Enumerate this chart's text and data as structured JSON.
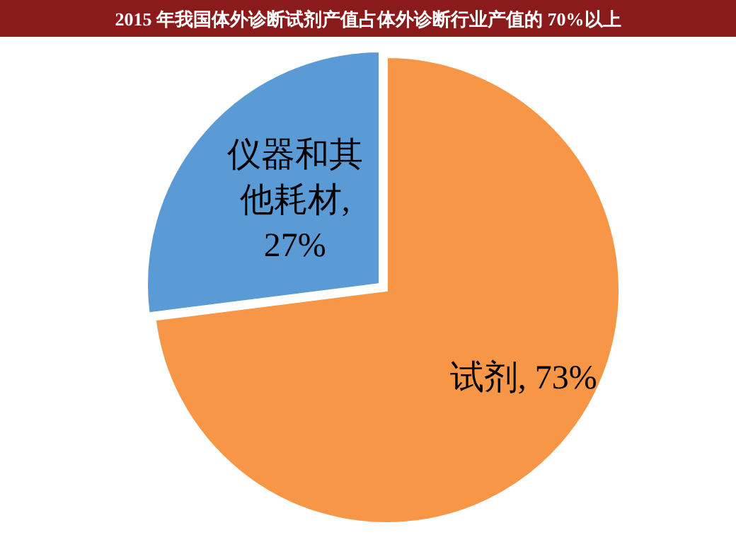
{
  "chart_data": {
    "type": "pie",
    "title": "2015 年我国体外诊断试剂产值占体外诊断行业产值的 70%以上",
    "categories": [
      "试剂",
      "仪器和其他耗材"
    ],
    "values": [
      73,
      27
    ],
    "colors": [
      "#f79646",
      "#5b9bd5"
    ],
    "value_labels": [
      ", 73%",
      ", 27%"
    ]
  }
}
